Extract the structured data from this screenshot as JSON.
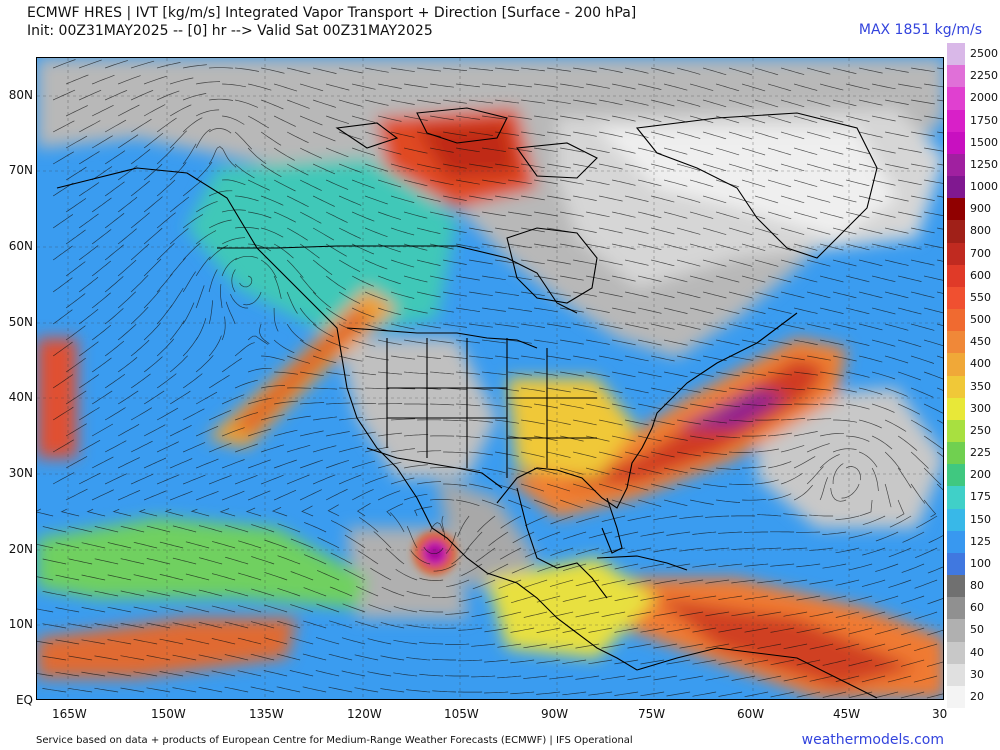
{
  "header": {
    "title_line1": "ECMWF HRES | IVT [kg/m/s] Integrated Vapor Transport + Direction [Surface - 200 hPa]",
    "title_line2": "Init: 00Z31MAY2025 -- [0] hr --> Valid Sat 00Z31MAY2025",
    "max_label": "MAX 1851 kg/m/s"
  },
  "map": {
    "lat_labels": [
      "80N",
      "70N",
      "60N",
      "50N",
      "40N",
      "30N",
      "20N",
      "10N",
      "EQ"
    ],
    "lon_labels": [
      "165W",
      "150W",
      "135W",
      "120W",
      "105W",
      "90W",
      "75W",
      "60W",
      "45W",
      "30"
    ]
  },
  "colorbar": {
    "ticks": [
      "2500",
      "2250",
      "2000",
      "1750",
      "1500",
      "1250",
      "1000",
      "900",
      "800",
      "700",
      "600",
      "550",
      "500",
      "450",
      "400",
      "350",
      "300",
      "250",
      "225",
      "200",
      "175",
      "150",
      "125",
      "100",
      "80",
      "60",
      "50",
      "40",
      "30",
      "20"
    ],
    "colors": [
      "#d9b8e8",
      "#e070d8",
      "#e040d0",
      "#d820c8",
      "#c810c0",
      "#a020a0",
      "#801890",
      "#900000",
      "#a02018",
      "#c02a20",
      "#e03a28",
      "#f05030",
      "#f06a30",
      "#f08838",
      "#f0a838",
      "#f0c838",
      "#e8e838",
      "#a8e040",
      "#70d050",
      "#40c880",
      "#40d0c8",
      "#38b8e8",
      "#3898f0",
      "#4078e0",
      "#707070",
      "#909090",
      "#b0b0b0",
      "#c8c8c8",
      "#e0e0e0",
      "#f4f4f4"
    ]
  },
  "footer": {
    "source_text": "Service based on data + products of European Centre for Medium-Range Weather Forecasts (ECMWF) | IFS Operational",
    "site": "weathermodels.com"
  }
}
